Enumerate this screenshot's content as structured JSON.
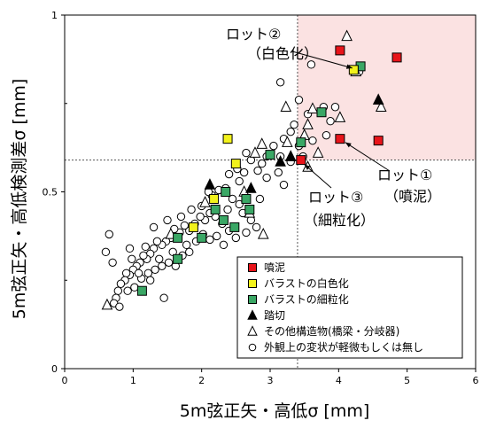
{
  "chart_data": {
    "type": "scatter",
    "xlabel": "5m弦正矢・高低σ [mm]",
    "ylabel": "5m弦正矢・高低検測差σ [mm]",
    "xlim": [
      0,
      6
    ],
    "ylim": [
      0,
      1
    ],
    "x_ticks": [
      "0",
      "1",
      "2",
      "3",
      "4",
      "5",
      "6"
    ],
    "y_ticks": [
      "0",
      "0.5",
      "1"
    ],
    "thresholds": {
      "x": 3.4,
      "y": 0.59
    },
    "highlight_color": "#fbe2e2",
    "legend_position": "bottom-right",
    "series": [
      {
        "name": "噴泥",
        "marker": "square",
        "color": "#e8141a",
        "points": [
          [
            4.02,
            0.9
          ],
          [
            4.85,
            0.88
          ],
          [
            4.02,
            0.65
          ],
          [
            4.58,
            0.645
          ],
          [
            3.45,
            0.59
          ]
        ]
      },
      {
        "name": "バラストの白色化",
        "marker": "square",
        "color": "#f2f21c",
        "points": [
          [
            2.38,
            0.65
          ],
          [
            2.5,
            0.58
          ],
          [
            4.22,
            0.845
          ],
          [
            2.18,
            0.48
          ],
          [
            1.88,
            0.4
          ]
        ]
      },
      {
        "name": "バラストの細粒化",
        "marker": "square",
        "color": "#3aa765",
        "points": [
          [
            4.32,
            0.855
          ],
          [
            3.75,
            0.725
          ],
          [
            3.45,
            0.64
          ],
          [
            3.0,
            0.605
          ],
          [
            2.65,
            0.48
          ],
          [
            2.7,
            0.45
          ],
          [
            2.35,
            0.5
          ],
          [
            2.2,
            0.45
          ],
          [
            2.32,
            0.42
          ],
          [
            2.48,
            0.4
          ],
          [
            1.65,
            0.37
          ],
          [
            1.65,
            0.31
          ],
          [
            1.13,
            0.22
          ],
          [
            2.0,
            0.37
          ]
        ]
      },
      {
        "name": "踏切",
        "marker": "triangle",
        "color": "#000000",
        "points": [
          [
            4.58,
            0.76
          ],
          [
            3.3,
            0.6
          ],
          [
            3.15,
            0.585
          ],
          [
            2.72,
            0.51
          ],
          [
            2.12,
            0.52
          ]
        ]
      },
      {
        "name": "その他構造物(橋梁・分岐器)",
        "marker": "triangle-open",
        "color": "#000000",
        "points": [
          [
            4.12,
            0.94
          ],
          [
            4.25,
            0.84
          ],
          [
            4.62,
            0.74
          ],
          [
            3.23,
            0.74
          ],
          [
            3.62,
            0.735
          ],
          [
            3.55,
            0.69
          ],
          [
            4.02,
            0.71
          ],
          [
            3.25,
            0.64
          ],
          [
            3.5,
            0.66
          ],
          [
            3.7,
            0.61
          ],
          [
            3.55,
            0.57
          ],
          [
            2.88,
            0.635
          ],
          [
            2.78,
            0.61
          ],
          [
            2.62,
            0.5
          ],
          [
            2.7,
            0.44
          ],
          [
            2.9,
            0.38
          ],
          [
            2.05,
            0.47
          ],
          [
            1.55,
            0.38
          ],
          [
            0.62,
            0.18
          ]
        ]
      },
      {
        "name": "外観上の変状が軽微もしくは無し",
        "marker": "circle-open",
        "color": "#000000",
        "points": [
          [
            4.3,
            0.84
          ],
          [
            3.6,
            0.86
          ],
          [
            3.15,
            0.81
          ],
          [
            3.42,
            0.76
          ],
          [
            3.78,
            0.74
          ],
          [
            3.55,
            0.72
          ],
          [
            3.88,
            0.7
          ],
          [
            3.95,
            0.74
          ],
          [
            3.35,
            0.69
          ],
          [
            3.3,
            0.67
          ],
          [
            3.2,
            0.65
          ],
          [
            3.42,
            0.63
          ],
          [
            3.62,
            0.645
          ],
          [
            3.82,
            0.66
          ],
          [
            3.48,
            0.6
          ],
          [
            3.3,
            0.585
          ],
          [
            3.15,
            0.6
          ],
          [
            3.05,
            0.63
          ],
          [
            2.95,
            0.6
          ],
          [
            2.88,
            0.58
          ],
          [
            2.72,
            0.59
          ],
          [
            2.65,
            0.61
          ],
          [
            2.82,
            0.56
          ],
          [
            2.95,
            0.54
          ],
          [
            3.2,
            0.52
          ],
          [
            3.12,
            0.555
          ],
          [
            2.62,
            0.555
          ],
          [
            2.52,
            0.565
          ],
          [
            2.4,
            0.55
          ],
          [
            2.55,
            0.53
          ],
          [
            2.35,
            0.51
          ],
          [
            2.25,
            0.505
          ],
          [
            2.15,
            0.49
          ],
          [
            2.45,
            0.48
          ],
          [
            2.55,
            0.465
          ],
          [
            2.6,
            0.44
          ],
          [
            2.72,
            0.42
          ],
          [
            2.8,
            0.4
          ],
          [
            2.65,
            0.385
          ],
          [
            2.5,
            0.37
          ],
          [
            2.4,
            0.39
          ],
          [
            2.3,
            0.41
          ],
          [
            2.2,
            0.43
          ],
          [
            2.12,
            0.44
          ],
          [
            2.05,
            0.42
          ],
          [
            1.98,
            0.43
          ],
          [
            1.9,
            0.41
          ],
          [
            1.82,
            0.39
          ],
          [
            1.75,
            0.405
          ],
          [
            1.68,
            0.385
          ],
          [
            1.6,
            0.395
          ],
          [
            1.55,
            0.37
          ],
          [
            1.48,
            0.36
          ],
          [
            1.42,
            0.35
          ],
          [
            1.35,
            0.36
          ],
          [
            1.3,
            0.34
          ],
          [
            1.25,
            0.325
          ],
          [
            1.2,
            0.31
          ],
          [
            1.15,
            0.32
          ],
          [
            1.1,
            0.3
          ],
          [
            1.05,
            0.29
          ],
          [
            1.0,
            0.28
          ],
          [
            0.95,
            0.265
          ],
          [
            0.9,
            0.27
          ],
          [
            0.88,
            0.25
          ],
          [
            0.82,
            0.24
          ],
          [
            0.78,
            0.22
          ],
          [
            0.75,
            0.2
          ],
          [
            0.72,
            0.185
          ],
          [
            0.8,
            0.175
          ],
          [
            0.92,
            0.22
          ],
          [
            1.02,
            0.23
          ],
          [
            1.12,
            0.255
          ],
          [
            1.22,
            0.27
          ],
          [
            1.32,
            0.28
          ],
          [
            1.42,
            0.29
          ],
          [
            1.52,
            0.3
          ],
          [
            1.62,
            0.29
          ],
          [
            1.72,
            0.32
          ],
          [
            1.82,
            0.33
          ],
          [
            1.92,
            0.36
          ],
          [
            2.02,
            0.38
          ],
          [
            2.12,
            0.365
          ],
          [
            2.22,
            0.375
          ],
          [
            2.32,
            0.35
          ],
          [
            1.45,
            0.2
          ],
          [
            1.25,
            0.25
          ],
          [
            0.65,
            0.38
          ],
          [
            0.95,
            0.34
          ],
          [
            1.3,
            0.4
          ],
          [
            1.5,
            0.42
          ],
          [
            1.7,
            0.43
          ],
          [
            1.85,
            0.45
          ],
          [
            2.0,
            0.46
          ],
          [
            2.1,
            0.5
          ],
          [
            0.6,
            0.33
          ],
          [
            0.7,
            0.3
          ],
          [
            0.98,
            0.31
          ],
          [
            1.08,
            0.27
          ],
          [
            1.18,
            0.345
          ],
          [
            1.38,
            0.31
          ],
          [
            1.58,
            0.33
          ],
          [
            1.78,
            0.35
          ],
          [
            2.38,
            0.45
          ],
          [
            2.85,
            0.48
          ]
        ]
      }
    ],
    "annotations": [
      {
        "id": "lot2",
        "lines": [
          "ロット②",
          "（白色化）"
        ]
      },
      {
        "id": "lot1",
        "lines": [
          "ロット①",
          "（噴泥）"
        ]
      },
      {
        "id": "lot3",
        "lines": [
          "ロット③",
          "（細粒化）"
        ]
      }
    ]
  }
}
